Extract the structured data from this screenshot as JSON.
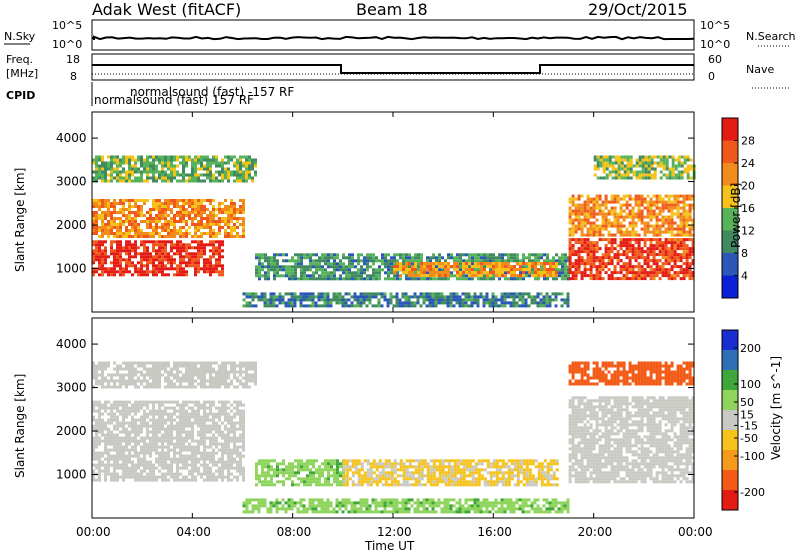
{
  "header": {
    "station": "Adak West (fitACF)",
    "beam": "Beam 18",
    "date": "29/Oct/2015"
  },
  "top_panels": {
    "nsky_label": "N.Sky",
    "nsky_ticks": [
      "10^5",
      "10^0"
    ],
    "nsearch_label": "N.Search",
    "nsearch_ticks": [
      "10^5",
      "10^0"
    ],
    "freq_label_1": "Freq.",
    "freq_label_2": "[MHz]",
    "freq_ticks": [
      "18",
      "8"
    ],
    "nave_label": "Nave",
    "nave_ticks": [
      "60",
      "0"
    ],
    "cpid_label": "CPID",
    "cpid_entries": [
      "normalsound (fast) -157 RF",
      "normalsound (fast) 157 RF"
    ]
  },
  "x_axis": {
    "ticks": [
      "00:00",
      "04:00",
      "08:00",
      "12:00",
      "16:00",
      "20:00",
      "00:00"
    ],
    "label": "Time UT"
  },
  "colors": {
    "power": [
      "#0a1fd6",
      "#2b58b8",
      "#3f8a5e",
      "#57b35a",
      "#f5c21a",
      "#f28a1c",
      "#f0591b",
      "#e41a14"
    ],
    "velocity": [
      "#e41a14",
      "#f25a16",
      "#f79a1c",
      "#f6c21c",
      "#c9c9c4",
      "#8fd45c",
      "#3fa63a",
      "#2f6fb6",
      "#1a2dd0"
    ]
  },
  "chart_data": [
    {
      "type": "heatmap",
      "title": "Power",
      "ylabel": "Slant Range [km]",
      "xlabel": "Time UT",
      "ylim": [
        0,
        4600
      ],
      "y_ticks": [
        "1000",
        "2000",
        "3000",
        "4000"
      ],
      "colorbar_label": "Power [dB]",
      "colorbar_ticks": [
        "4",
        "8",
        "12",
        "16",
        "20",
        "24",
        "28"
      ],
      "colorbar_range": [
        0,
        32
      ],
      "regions": [
        {
          "t": [
            0,
            5.2
          ],
          "r": [
            850,
            1650
          ],
          "level": 29
        },
        {
          "t": [
            0,
            6.0
          ],
          "r": [
            1750,
            2600
          ],
          "level": 22
        },
        {
          "t": [
            0,
            6.5
          ],
          "r": [
            3000,
            3600
          ],
          "level": 14
        },
        {
          "t": [
            6.5,
            19.0
          ],
          "r": [
            750,
            1350
          ],
          "level": 11
        },
        {
          "t": [
            12.0,
            18.5
          ],
          "r": [
            850,
            1150
          ],
          "level": 21
        },
        {
          "t": [
            19.0,
            24.0
          ],
          "r": [
            800,
            1700
          ],
          "level": 28
        },
        {
          "t": [
            19.0,
            24.0
          ],
          "r": [
            1800,
            2700
          ],
          "level": 22
        },
        {
          "t": [
            20.0,
            24.0
          ],
          "r": [
            3100,
            3600
          ],
          "level": 15
        },
        {
          "t": [
            6.0,
            19.0
          ],
          "r": [
            150,
            450
          ],
          "level": 9
        }
      ]
    },
    {
      "type": "heatmap",
      "title": "Velocity",
      "ylabel": "Slant Range [km]",
      "xlabel": "Time UT",
      "ylim": [
        0,
        4600
      ],
      "y_ticks": [
        "1000",
        "2000",
        "3000",
        "4000"
      ],
      "colorbar_label": "Velocity [m s^-1]",
      "colorbar_ticks": [
        "-200",
        "-100",
        "-50",
        "-15",
        "15",
        "50",
        "100",
        "200"
      ],
      "colorbar_range": [
        -250,
        250
      ],
      "regions": [
        {
          "t": [
            0,
            6.0
          ],
          "r": [
            850,
            2700
          ],
          "level": 0
        },
        {
          "t": [
            0,
            6.5
          ],
          "r": [
            3000,
            3600
          ],
          "level": 0
        },
        {
          "t": [
            6.5,
            10.0
          ],
          "r": [
            750,
            1350
          ],
          "level": 40
        },
        {
          "t": [
            10.0,
            18.5
          ],
          "r": [
            750,
            1350
          ],
          "level": -20
        },
        {
          "t": [
            19.0,
            24.0
          ],
          "r": [
            800,
            2800
          ],
          "level": 0
        },
        {
          "t": [
            19.0,
            24.0
          ],
          "r": [
            3100,
            3600
          ],
          "level": -150
        },
        {
          "t": [
            6.0,
            19.0
          ],
          "r": [
            150,
            450
          ],
          "level": 40
        }
      ]
    }
  ]
}
